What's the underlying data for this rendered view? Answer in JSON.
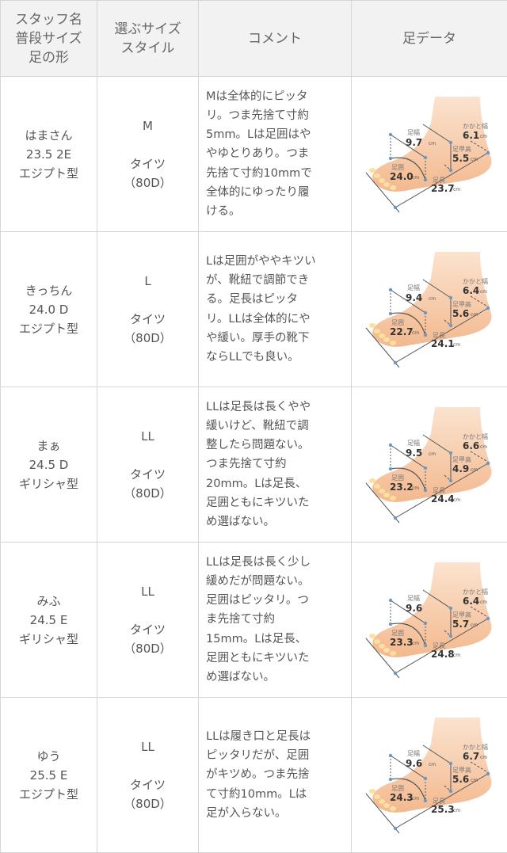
{
  "header": {
    "col1": "スタッフ名\n普段サイズ\n足の形",
    "col2": "選ぶサイズ\nスタイル",
    "col3": "コメント",
    "col4": "足データ"
  },
  "foot_labels": {
    "width": "足幅",
    "heel_width": "かかと幅",
    "instep_height": "足甲高",
    "girth": "足囲",
    "length": "足長",
    "unit": "cm"
  },
  "colors": {
    "border": "#d6d6d6",
    "header_bg": "#f2f2f2",
    "text": "#555555",
    "foot_skin": "#f6c7a0"
  },
  "rows": [
    {
      "staff": "はまさん\n23.5 2E\nエジプト型",
      "size": "M",
      "style": "タイツ\n（80D）",
      "comment": "Mは全体的にピッタ\nリ。つま先捨て寸約\n5mm。Lは足囲はや\nやゆとりあり。つま\n先捨て寸約10mmで\n全体的にゆったり履\nける。",
      "foot": {
        "width": "9.7",
        "width_unit": "cm",
        "heel_width": "6.1",
        "instep_height": "5.5",
        "girth": "24.0",
        "length": "23.7"
      }
    },
    {
      "staff": "きっちん\n24.0 D\nエジプト型",
      "size": "L",
      "style": "タイツ\n（80D）",
      "comment": "Lは足囲がややキツい\nが、靴紐で調節でき\nる。足長はピッタ\nリ。LLは全体的にや\nや緩い。厚手の靴下\nならLLでも良い。",
      "foot": {
        "width": "9.4",
        "width_unit": "cm",
        "heel_width": "6.4",
        "instep_height": "5.6",
        "girth": "22.7",
        "length": "24.1"
      }
    },
    {
      "staff": "まぁ\n24.5 D\nギリシャ型",
      "size": "LL",
      "style": "タイツ\n（80D）",
      "comment": "LLは足長は長くやや\n緩いけど、靴紐で調\n整したら問題ない。\nつま先捨て寸約\n20mm。Lは足長、\n足囲ともにキツいた\nめ選ばない。",
      "foot": {
        "width": "9.5",
        "width_unit": "cm",
        "heel_width": "6.6",
        "instep_height": "4.9",
        "girth": "23.2",
        "length": "24.4"
      }
    },
    {
      "staff": "みふ\n24.5 E\nギリシャ型",
      "size": "LL",
      "style": "タイツ\n（80D）",
      "comment": "LLは足長は長く少し\n緩めだが問題ない。\n足囲はピッタリ。つ\nま先捨て寸約\n15mm。Lは足長、\n足囲ともにキツいた\nめ選ばない。",
      "foot": {
        "width": "9.6",
        "width_unit": "",
        "heel_width": "6.4",
        "instep_height": "5.7",
        "girth": "23.3",
        "length": "24.8"
      }
    },
    {
      "staff": "ゆう\n25.5 E\nエジプト型",
      "size": "LL",
      "style": "タイツ\n（80D）",
      "comment": "LLは履き口と足長は\nピッタリだが、足囲\nがキツめ。つま先捨\nて寸約10mm。Lは\n足が入らない。",
      "foot": {
        "width": "9.6",
        "width_unit": "cm",
        "heel_width": "6.7",
        "instep_height": "5.6",
        "girth": "24.3",
        "length": "25.3"
      }
    }
  ]
}
